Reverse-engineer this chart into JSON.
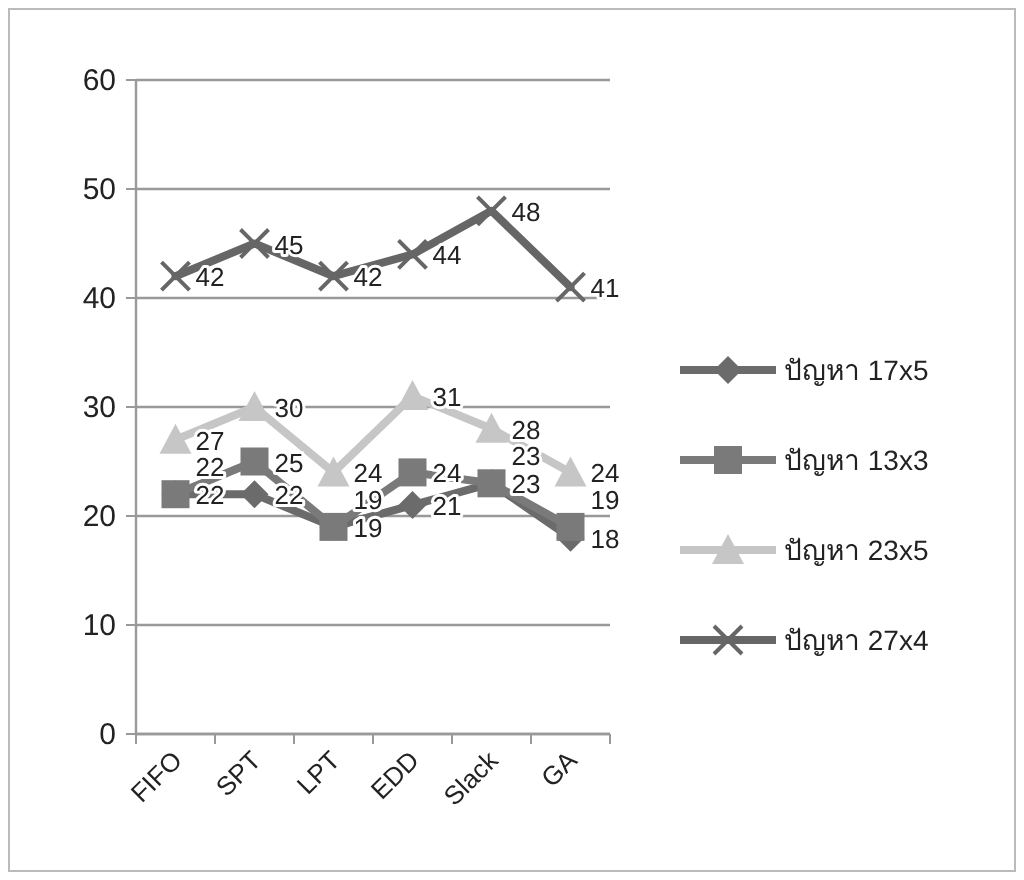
{
  "chart_data": {
    "type": "line",
    "categories": [
      "FIFO",
      "SPT",
      "LPT",
      "EDD",
      "Slack",
      "GA"
    ],
    "ylim": [
      0,
      60
    ],
    "yticks": [
      0,
      10,
      20,
      30,
      40,
      50,
      60
    ],
    "grid": "y",
    "legend": "right",
    "data_labels": true,
    "series": [
      {
        "name": "ปัญหา 17x5",
        "color": "#6b6b6b",
        "marker": "diamond",
        "values": [
          22,
          22,
          19,
          21,
          23,
          18
        ]
      },
      {
        "name": "ปัญหา 13x3",
        "color": "#7a7a7a",
        "marker": "square",
        "values": [
          22,
          25,
          19,
          24,
          23,
          19
        ]
      },
      {
        "name": "ปัญหา 23x5",
        "color": "#c6c6c6",
        "marker": "triangle",
        "values": [
          27,
          30,
          24,
          31,
          28,
          24
        ]
      },
      {
        "name": "ปัญหา 27x4",
        "color": "#666666",
        "marker": "cross",
        "values": [
          42,
          45,
          42,
          44,
          48,
          41
        ]
      }
    ]
  }
}
